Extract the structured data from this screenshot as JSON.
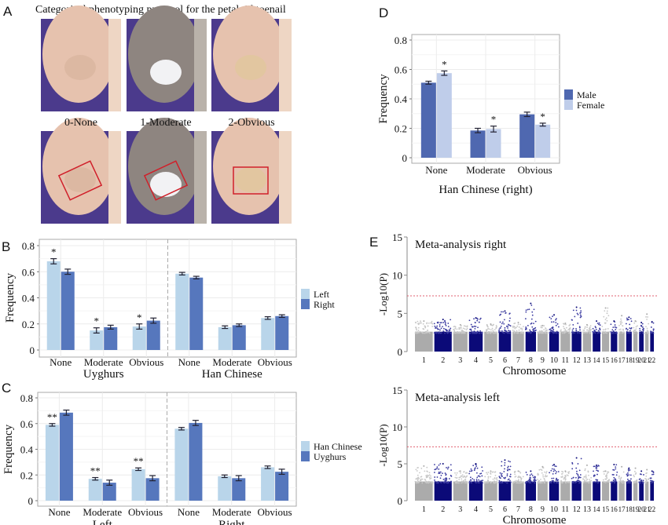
{
  "panel_labels": {
    "a": "A",
    "b": "B",
    "c": "C",
    "d": "D",
    "e": "E"
  },
  "panel_a": {
    "title": "Categorical phenotyping protocol for the petaloid toenail",
    "categories": [
      "0-None",
      "1-Moderate",
      "2-Obvious"
    ],
    "photo_colors": {
      "skin": "#e6c2ae",
      "fabric": "#4b3a8c",
      "nail_white": "#f2f2f4",
      "outline": "#d0202a"
    }
  },
  "colors": {
    "light_blue": "#b9d5ea",
    "mid_blue": "#5677bd",
    "male": "#4f68b0",
    "female": "#bfcdea",
    "gray_chrom": "#ababab",
    "navy_chrom": "#0b0a78",
    "threshold": "#e06070"
  },
  "chart_data": [
    {
      "id": "B",
      "type": "bar",
      "ylabel": "Frequency",
      "ylim": [
        0,
        0.8
      ],
      "yticks": [
        "0",
        "0.2",
        "0.4",
        "0.6",
        "0.8"
      ],
      "grid": true,
      "legend": "right",
      "groups": [
        {
          "name": "Uyghurs",
          "categories": [
            "None",
            "Moderate",
            "Obvious"
          ],
          "series": [
            {
              "name": "Left",
              "values": [
                0.68,
                0.15,
                0.18
              ],
              "err": [
                0.02,
                0.02,
                0.02
              ],
              "sig": [
                "*",
                "*",
                "*"
              ]
            },
            {
              "name": "Right",
              "values": [
                0.6,
                0.175,
                0.225
              ],
              "err": [
                0.02,
                0.015,
                0.02
              ],
              "sig": [
                "",
                "",
                ""
              ]
            }
          ]
        },
        {
          "name": "Han Chinese",
          "categories": [
            "None",
            "Moderate",
            "Obvious"
          ],
          "series": [
            {
              "name": "Left",
              "values": [
                0.585,
                0.175,
                0.245
              ],
              "err": [
                0.01,
                0.01,
                0.01
              ],
              "sig": [
                "",
                "",
                ""
              ]
            },
            {
              "name": "Right",
              "values": [
                0.555,
                0.19,
                0.26
              ],
              "err": [
                0.01,
                0.01,
                0.01
              ],
              "sig": [
                "",
                "",
                ""
              ]
            }
          ]
        }
      ],
      "legend_entries": [
        "Left",
        "Right"
      ]
    },
    {
      "id": "C",
      "type": "bar",
      "ylabel": "Frequency",
      "ylim": [
        0,
        0.8
      ],
      "yticks": [
        "0",
        "0.2",
        "0.4",
        "0.6",
        "0.8"
      ],
      "grid": true,
      "legend": "right",
      "groups": [
        {
          "name": "Left",
          "categories": [
            "None",
            "Moderate",
            "Obvious"
          ],
          "series": [
            {
              "name": "Han Chinese",
              "values": [
                0.59,
                0.17,
                0.245
              ],
              "err": [
                0.01,
                0.01,
                0.01
              ],
              "sig": [
                "**",
                "**",
                "**"
              ]
            },
            {
              "name": "Uyghurs",
              "values": [
                0.685,
                0.14,
                0.175
              ],
              "err": [
                0.02,
                0.02,
                0.02
              ],
              "sig": [
                "",
                "",
                ""
              ]
            }
          ]
        },
        {
          "name": "Right",
          "categories": [
            "None",
            "Moderate",
            "Obvious"
          ],
          "series": [
            {
              "name": "Han Chinese",
              "values": [
                0.56,
                0.19,
                0.26
              ],
              "err": [
                0.01,
                0.01,
                0.01
              ],
              "sig": [
                "",
                "",
                ""
              ]
            },
            {
              "name": "Uyghurs",
              "values": [
                0.605,
                0.175,
                0.225
              ],
              "err": [
                0.02,
                0.02,
                0.02
              ],
              "sig": [
                "",
                "",
                ""
              ]
            }
          ]
        }
      ],
      "legend_entries": [
        "Han Chinese",
        "Uyghurs"
      ]
    },
    {
      "id": "D",
      "type": "bar",
      "ylabel": "Frequency",
      "xlabel": "Han Chinese (right)",
      "ylim": [
        0,
        0.8
      ],
      "yticks": [
        "0",
        "0.2",
        "0.4",
        "0.6",
        "0.8"
      ],
      "grid": true,
      "legend": "right",
      "groups": [
        {
          "name": "",
          "categories": [
            "None",
            "Moderate",
            "Obvious"
          ],
          "series": [
            {
              "name": "Male",
              "values": [
                0.51,
                0.185,
                0.295
              ],
              "err": [
                0.01,
                0.015,
                0.015
              ],
              "sig": [
                "",
                "",
                ""
              ]
            },
            {
              "name": "Female",
              "values": [
                0.575,
                0.195,
                0.225
              ],
              "err": [
                0.015,
                0.02,
                0.01
              ],
              "sig": [
                "*",
                "*",
                "*"
              ]
            }
          ]
        }
      ],
      "legend_entries": [
        "Male",
        "Female"
      ]
    },
    {
      "id": "E-right",
      "type": "scatter",
      "title": "Meta-analysis right",
      "xlabel": "Chromosome",
      "ylabel": "-Log10(P)",
      "ylim": [
        0,
        15
      ],
      "yticks": [
        "0",
        "5",
        "10",
        "15"
      ],
      "threshold": 7.3,
      "chromosomes": [
        "1",
        "2",
        "3",
        "4",
        "5",
        "6",
        "7",
        "8",
        "9",
        "10",
        "11",
        "12",
        "13",
        "14",
        "15",
        "16",
        "17",
        "18",
        "19",
        "20",
        "21",
        "22"
      ],
      "peak_values": [
        4.0,
        4.2,
        3.5,
        4.4,
        3.6,
        5.3,
        3.8,
        6.3,
        3.4,
        4.8,
        3.7,
        5.8,
        3.5,
        4.0,
        5.7,
        4.0,
        4.7,
        4.5,
        4.0,
        3.8,
        4.9,
        3.9
      ]
    },
    {
      "id": "E-left",
      "type": "scatter",
      "title": "Meta-analysis left",
      "xlabel": "Chromosome",
      "ylabel": "-Log10(P)",
      "ylim": [
        0,
        15
      ],
      "yticks": [
        "0",
        "5",
        "10",
        "15"
      ],
      "threshold": 7.3,
      "chromosomes": [
        "1",
        "2",
        "3",
        "4",
        "5",
        "6",
        "7",
        "8",
        "9",
        "10",
        "11",
        "12",
        "13",
        "14",
        "15",
        "16",
        "17",
        "18",
        "19",
        "20",
        "21",
        "22"
      ],
      "peak_values": [
        4.7,
        5.0,
        4.0,
        5.0,
        4.0,
        5.5,
        4.0,
        4.0,
        4.6,
        4.9,
        4.0,
        5.8,
        4.8,
        4.8,
        4.0,
        4.9,
        4.6,
        4.4,
        4.4,
        4.0,
        4.2,
        4.0
      ]
    }
  ]
}
